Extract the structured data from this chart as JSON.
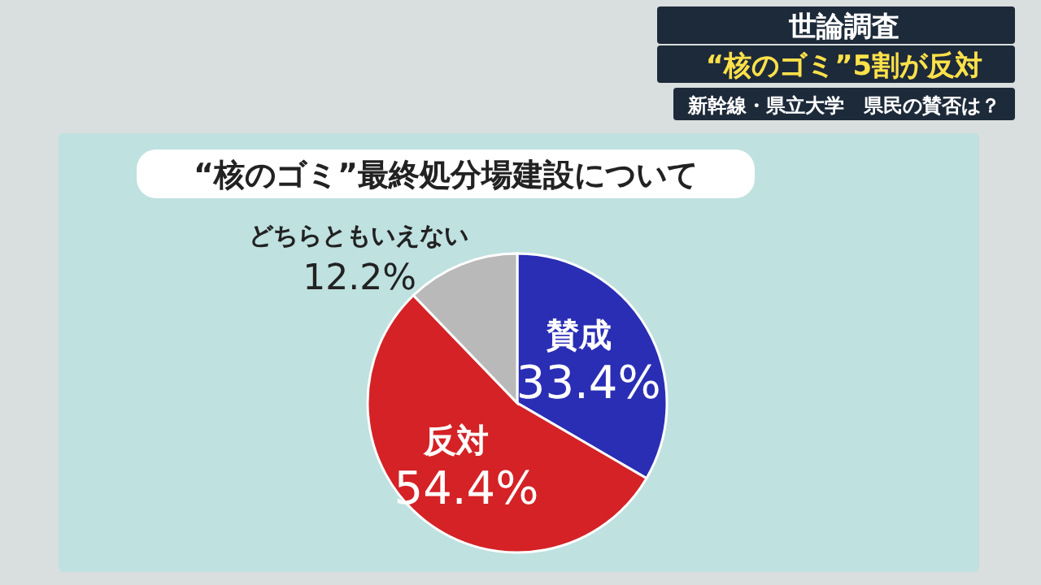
{
  "chart_data": {
    "type": "pie",
    "title": "“核のゴミ”最終処分場建設について",
    "annotations": [
      "世論調査",
      "“核のゴミ”5割が反対",
      "新幹線・県立大学　県民の賛否は？"
    ],
    "categories": [
      "賛成",
      "反対",
      "どちらともいえない"
    ],
    "values": [
      33.4,
      54.4,
      12.2
    ],
    "colors": [
      "#2a2eb4",
      "#d42226",
      "#b9b9b9"
    ],
    "value_labels": [
      "33.4%",
      "54.4%",
      "12.2%"
    ]
  }
}
